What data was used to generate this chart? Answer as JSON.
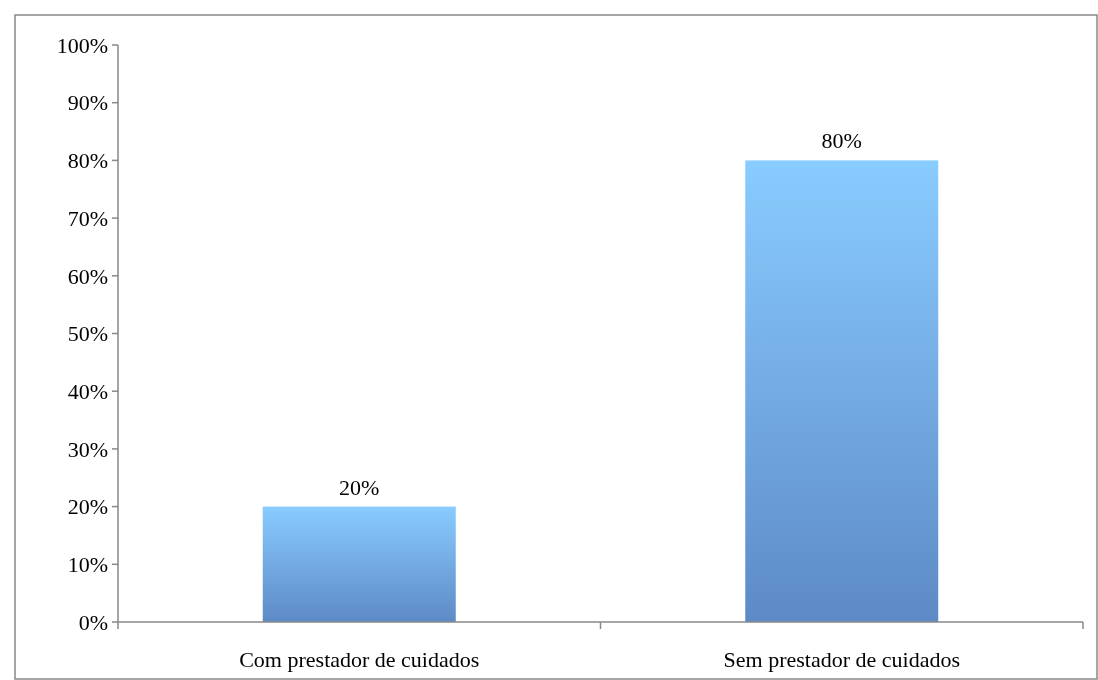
{
  "chart_data": {
    "type": "bar",
    "categories": [
      "Com prestador de cuidados",
      "Sem prestador de cuidados"
    ],
    "values": [
      20,
      80
    ],
    "value_labels": [
      "20%",
      "80%"
    ],
    "color": "#6fa5ec",
    "ylim": [
      0,
      100
    ],
    "yticks": [
      {
        "value": 0,
        "label": "0%"
      },
      {
        "value": 10,
        "label": "10%"
      },
      {
        "value": 20,
        "label": "20%"
      },
      {
        "value": 30,
        "label": "30%"
      },
      {
        "value": 40,
        "label": "40%"
      },
      {
        "value": 50,
        "label": "50%"
      },
      {
        "value": 60,
        "label": "60%"
      },
      {
        "value": 70,
        "label": "70%"
      },
      {
        "value": 80,
        "label": "80%"
      },
      {
        "value": 90,
        "label": "90%"
      },
      {
        "value": 100,
        "label": "100%"
      }
    ],
    "grid": false
  }
}
